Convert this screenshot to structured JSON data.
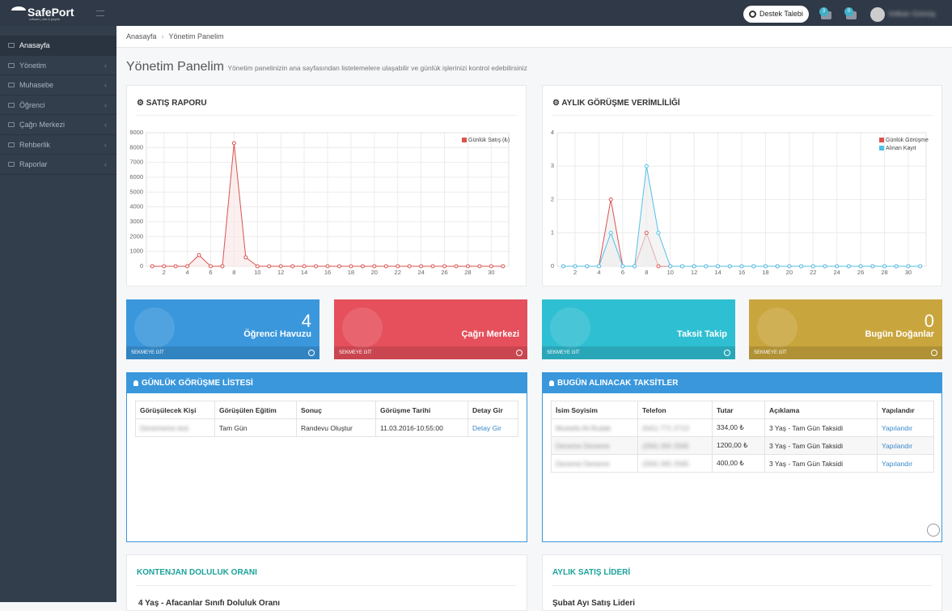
{
  "header": {
    "logo": "SafePort",
    "logo_tagline": "software | web & graphic",
    "support_button": "Destek Talebi",
    "badges": [
      "3",
      "0"
    ],
    "user_name": "Volkan Gümüş"
  },
  "sidebar": {
    "items": [
      "Anasayfa",
      "Yönetim",
      "Muhasebe",
      "Öğrenci",
      "Çağrı Merkezi",
      "Rehberlik",
      "Raporlar"
    ]
  },
  "breadcrumb": [
    "Anasayfa",
    "Yönetim Panelim"
  ],
  "page": {
    "title": "Yönetim Panelim",
    "subtitle": "Yönetim panelinizin ana sayfasından listelemelere ulaşabilir ve günlük işlerinizi kontrol edebilirsiniz"
  },
  "chart_data": [
    {
      "type": "line",
      "title": "SATIŞ RAPORU",
      "x": [
        1,
        2,
        3,
        4,
        5,
        6,
        7,
        8,
        9,
        10,
        11,
        12,
        13,
        14,
        15,
        16,
        17,
        18,
        19,
        20,
        21,
        22,
        23,
        24,
        25,
        26,
        27,
        28,
        29,
        30,
        31
      ],
      "series": [
        {
          "name": "Günlük Satış (₺)",
          "color": "#d9534f",
          "fill": "#f9e4e4",
          "values": [
            0,
            0,
            0,
            0,
            750,
            0,
            0,
            8300,
            600,
            0,
            0,
            0,
            0,
            0,
            0,
            0,
            0,
            0,
            0,
            0,
            0,
            0,
            0,
            0,
            0,
            0,
            0,
            0,
            0,
            0,
            0
          ]
        }
      ],
      "xlim": [
        0.5,
        31.5
      ],
      "xticks": [
        2,
        4,
        6,
        8,
        10,
        12,
        14,
        16,
        18,
        20,
        22,
        24,
        26,
        28,
        30
      ],
      "ylim": [
        0,
        9000
      ],
      "yticks": [
        0,
        1000,
        2000,
        3000,
        4000,
        5000,
        6000,
        7000,
        8000,
        9000
      ],
      "grid": true,
      "legend": "top-right"
    },
    {
      "type": "line",
      "title": "AYLIK GÖRÜŞME VERİMLİLİĞİ",
      "x": [
        1,
        2,
        3,
        4,
        5,
        6,
        7,
        8,
        9,
        10,
        11,
        12,
        13,
        14,
        15,
        16,
        17,
        18,
        19,
        20,
        21,
        22,
        23,
        24,
        25,
        26,
        27,
        28,
        29,
        30,
        31
      ],
      "series": [
        {
          "name": "Günlük Görüşme",
          "color": "#d9534f",
          "fill": "#ececec",
          "values": [
            0,
            0,
            0,
            0,
            2,
            0,
            0,
            1,
            0,
            0,
            0,
            0,
            0,
            0,
            0,
            0,
            0,
            0,
            0,
            0,
            0,
            0,
            0,
            0,
            0,
            0,
            0,
            0,
            0,
            0,
            0
          ]
        },
        {
          "name": "Alınan Kayıt",
          "color": "#4fc1e9",
          "fill": "#ececec",
          "values": [
            0,
            0,
            0,
            0,
            1,
            0,
            0,
            3,
            1,
            0,
            0,
            0,
            0,
            0,
            0,
            0,
            0,
            0,
            0,
            0,
            0,
            0,
            0,
            0,
            0,
            0,
            0,
            0,
            0,
            0,
            0
          ]
        }
      ],
      "xlim": [
        0.5,
        31.5
      ],
      "xticks": [
        2,
        4,
        6,
        8,
        10,
        12,
        14,
        16,
        18,
        20,
        22,
        24,
        26,
        28,
        30
      ],
      "ylim": [
        0,
        4
      ],
      "yticks": [
        0,
        1,
        2,
        3,
        4
      ],
      "grid": true,
      "legend": "top-right"
    }
  ],
  "tiles": [
    {
      "value": "4",
      "label": "Öğrenci Havuzu",
      "link": "SEKMEYE GİT"
    },
    {
      "label": "Çağrı Merkezi",
      "link": "SEKMEYE GİT"
    },
    {
      "label": "Taksit Takip",
      "link": "SEKMEYE GİT"
    },
    {
      "value": "0",
      "label": "Bugün Doğanlar",
      "link": "SEKMEYE GİT"
    }
  ],
  "tables": [
    {
      "title": "GÜNLÜK GÖRÜŞME LİSTESİ",
      "columns": [
        "Görüşülecek Kişi",
        "Görüşülen Eğitim",
        "Sonuç",
        "Görüşme Tarihi",
        "Detay Gir"
      ],
      "rows": [
        [
          "Denememe test",
          "Tam Gün",
          "Randevu Oluştur",
          "11.03.2016-10:55:00",
          "Detay Gir"
        ]
      ]
    },
    {
      "title": "BUGÜN ALINACAK TAKSİTLER",
      "columns": [
        "İsim Soyisim",
        "Telefon",
        "Tutar",
        "Açıklama",
        "Yapılandır"
      ],
      "rows": [
        [
          "Mustafa Ali Budak",
          "(541) 771 2713",
          "334,00 ₺",
          "3 Yaş - Tam Gün Taksidi",
          "Yapılandır"
        ],
        [
          "Deneme Deneme",
          "(256) 265 2565",
          "1200,00 ₺",
          "3 Yaş - Tam Gün Taksidi",
          "Yapılandır"
        ],
        [
          "Deneme Deneme",
          "(256) 265 2565",
          "400,00 ₺",
          "3 Yaş - Tam Gün Taksidi",
          "Yapılandır"
        ]
      ]
    }
  ],
  "bottom_panels": [
    {
      "title": "KONTENJAN DOLULUK ORANI",
      "text": "4 Yaş - Afacanlar Sınıfı Doluluk Oranı"
    },
    {
      "title": "AYLIK SATIŞ LİDERİ",
      "text": "Şubat Ayı Satış Lideri"
    }
  ]
}
